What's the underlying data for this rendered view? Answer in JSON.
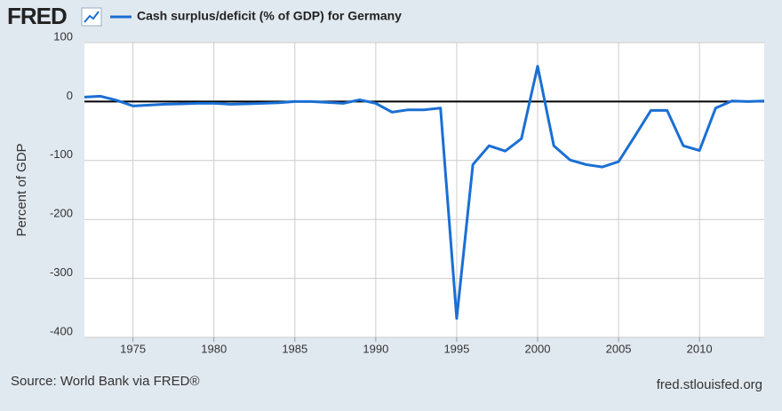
{
  "logo": "FRED",
  "chart_data": {
    "type": "line",
    "y_axis_label": "Percent of GDP",
    "source": "Source: World Bank via FRED®",
    "site": "fred.stlouisfed.org",
    "x": [
      1972,
      1973,
      1974,
      1975,
      1976,
      1977,
      1978,
      1979,
      1980,
      1981,
      1982,
      1983,
      1984,
      1985,
      1986,
      1987,
      1988,
      1989,
      1990,
      1991,
      1992,
      1993,
      1994,
      1995,
      1996,
      1997,
      1998,
      1999,
      2000,
      2001,
      2002,
      2003,
      2004,
      2005,
      2006,
      2007,
      2008,
      2009,
      2010,
      2011,
      2012,
      2013,
      2014
    ],
    "series": [
      {
        "name": "Cash surplus/deficit (% of GDP) for Germany",
        "color": "#1a6fd4",
        "values": [
          7.5,
          9,
          2,
          -7.5,
          -6,
          -4.5,
          -4,
          -3,
          -3,
          -4.5,
          -4,
          -3,
          -2,
          0,
          0,
          -1.5,
          -3,
          3,
          -3,
          -18,
          -14,
          -14,
          -11,
          -368,
          -107,
          -75,
          -84,
          -63,
          60,
          -75,
          -99,
          -107,
          -111,
          -102,
          -59,
          -15,
          -15,
          -75,
          -83,
          -11,
          1,
          0,
          1
        ]
      }
    ],
    "xlim": [
      1972,
      2014
    ],
    "ylim": [
      -400,
      100
    ],
    "xticks": [
      1975,
      1980,
      1985,
      1990,
      1995,
      2000,
      2005,
      2010
    ],
    "yticks": [
      100,
      0,
      -100,
      -200,
      -300,
      -400
    ],
    "grid": true
  }
}
